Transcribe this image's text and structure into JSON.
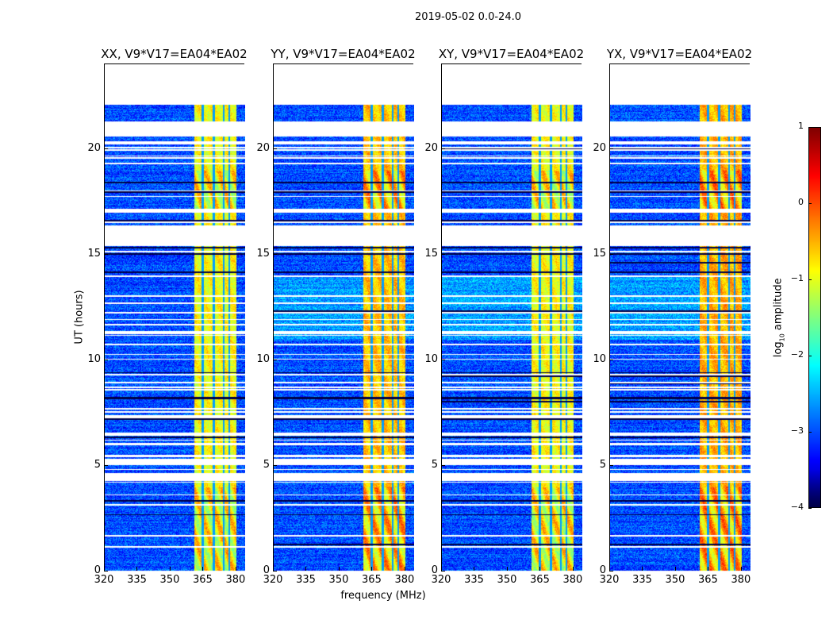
{
  "chart_data": {
    "type": "heatmap",
    "suptitle": "2019-05-02 0.0-24.0",
    "panels": [
      {
        "title": "XX, V9*V17=EA04*EA02",
        "band_level": -0.9
      },
      {
        "title": "YY, V9*V17=EA04*EA02",
        "band_level": -0.6
      },
      {
        "title": "XY, V9*V17=EA04*EA02",
        "band_level": -0.9
      },
      {
        "title": "YX, V9*V17=EA04*EA02",
        "band_level": -0.5
      }
    ],
    "xlabel": "frequency (MHz)",
    "ylabel": "UT (hours)",
    "xlim": [
      320,
      384
    ],
    "ylim": [
      0,
      24
    ],
    "xticks": [
      "320",
      "335",
      "350",
      "365",
      "380"
    ],
    "xtick_values": [
      320,
      335,
      350,
      365,
      380
    ],
    "yticks": [
      "0",
      "5",
      "10",
      "15",
      "20"
    ],
    "ytick_values": [
      0,
      5,
      10,
      15,
      20
    ],
    "background_level": -3.0,
    "bright_band_mhz": [
      360.5,
      380
    ],
    "band_dark_lines_mhz": [
      364.5,
      369.5,
      374,
      376.5
    ],
    "no_data_hours": [
      [
        22.1,
        24
      ],
      [
        20.6,
        21.3
      ],
      [
        15.4,
        16.4
      ],
      [
        4.3,
        4.6
      ],
      [
        17.0,
        17.2
      ]
    ],
    "colorbar": {
      "label": "log10 amplitude",
      "label_main": "log",
      "label_sub": "10",
      "label_rest": " amplitude",
      "range": [
        -4,
        1
      ],
      "ticks": [
        "−4",
        "−3",
        "−2",
        "−1",
        "0",
        "1"
      ],
      "tick_values": [
        -4,
        -3,
        -2,
        -1,
        0,
        1
      ],
      "colormap": "jet"
    }
  }
}
